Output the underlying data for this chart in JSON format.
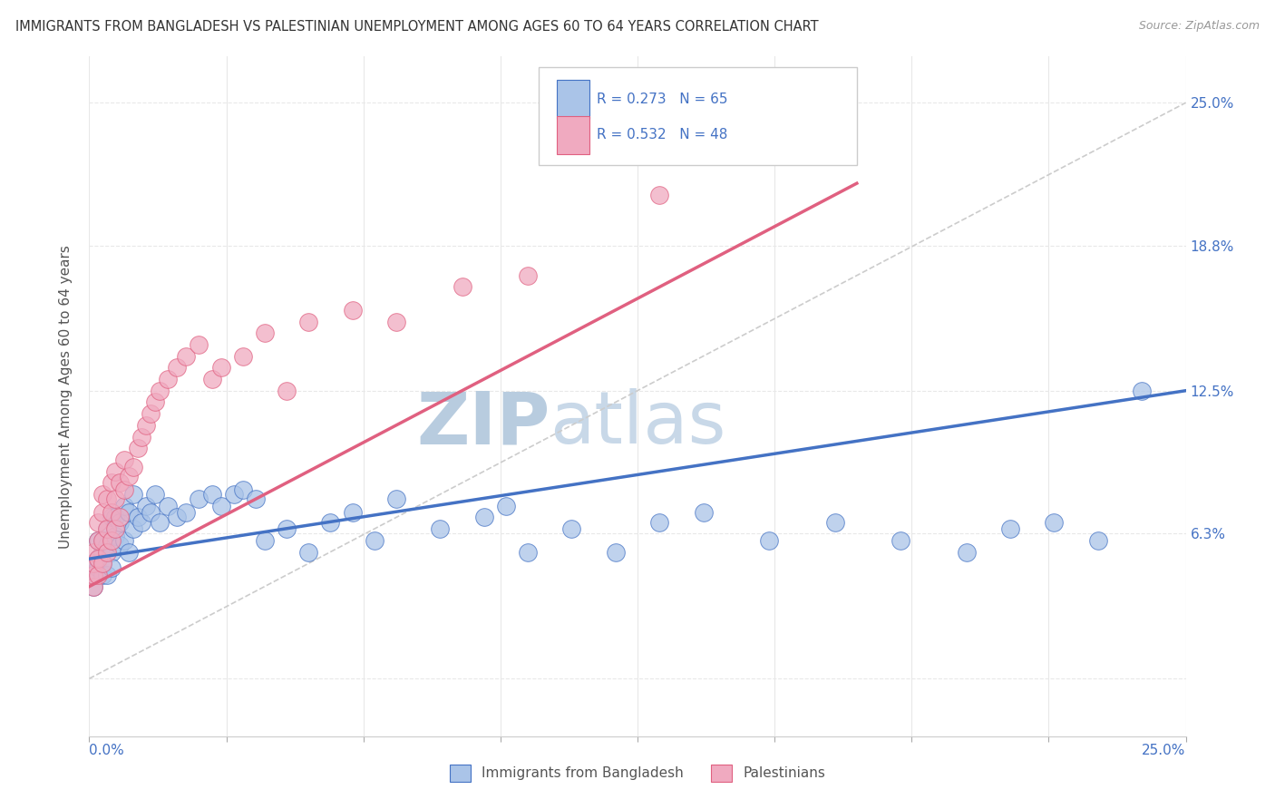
{
  "title": "IMMIGRANTS FROM BANGLADESH VS PALESTINIAN UNEMPLOYMENT AMONG AGES 60 TO 64 YEARS CORRELATION CHART",
  "source": "Source: ZipAtlas.com",
  "ylabel": "Unemployment Among Ages 60 to 64 years",
  "y_tick_vals": [
    0.0,
    0.063,
    0.125,
    0.188,
    0.25
  ],
  "y_tick_labels": [
    "",
    "6.3%",
    "12.5%",
    "18.8%",
    "25.0%"
  ],
  "x_min": 0.0,
  "x_max": 0.25,
  "y_min": -0.025,
  "y_max": 0.27,
  "series1_color": "#aac4e8",
  "series2_color": "#f0aac0",
  "trendline1_color": "#4472c4",
  "trendline2_color": "#e06080",
  "trendline_ref_color": "#cccccc",
  "watermark_color": "#dce8f5",
  "legend_text_color": "#4472c4",
  "title_color": "#333333",
  "grid_color": "#e8e8e8",
  "bangladesh_x": [
    0.001,
    0.001,
    0.001,
    0.002,
    0.002,
    0.002,
    0.003,
    0.003,
    0.003,
    0.003,
    0.004,
    0.004,
    0.004,
    0.005,
    0.005,
    0.005,
    0.005,
    0.006,
    0.006,
    0.007,
    0.007,
    0.008,
    0.008,
    0.009,
    0.009,
    0.01,
    0.01,
    0.011,
    0.012,
    0.013,
    0.014,
    0.015,
    0.016,
    0.018,
    0.02,
    0.022,
    0.025,
    0.028,
    0.03,
    0.033,
    0.035,
    0.038,
    0.04,
    0.045,
    0.05,
    0.055,
    0.06,
    0.065,
    0.07,
    0.08,
    0.09,
    0.095,
    0.1,
    0.11,
    0.12,
    0.13,
    0.14,
    0.155,
    0.17,
    0.185,
    0.2,
    0.21,
    0.22,
    0.23,
    0.24
  ],
  "bangladesh_y": [
    0.045,
    0.05,
    0.04,
    0.048,
    0.052,
    0.06,
    0.05,
    0.06,
    0.045,
    0.055,
    0.058,
    0.065,
    0.045,
    0.06,
    0.055,
    0.07,
    0.048,
    0.062,
    0.07,
    0.058,
    0.068,
    0.06,
    0.075,
    0.055,
    0.072,
    0.065,
    0.08,
    0.07,
    0.068,
    0.075,
    0.072,
    0.08,
    0.068,
    0.075,
    0.07,
    0.072,
    0.078,
    0.08,
    0.075,
    0.08,
    0.082,
    0.078,
    0.06,
    0.065,
    0.055,
    0.068,
    0.072,
    0.06,
    0.078,
    0.065,
    0.07,
    0.075,
    0.055,
    0.065,
    0.055,
    0.068,
    0.072,
    0.06,
    0.068,
    0.06,
    0.055,
    0.065,
    0.068,
    0.06,
    0.125
  ],
  "palestinian_x": [
    0.001,
    0.001,
    0.001,
    0.001,
    0.002,
    0.002,
    0.002,
    0.002,
    0.003,
    0.003,
    0.003,
    0.003,
    0.004,
    0.004,
    0.004,
    0.005,
    0.005,
    0.005,
    0.006,
    0.006,
    0.006,
    0.007,
    0.007,
    0.008,
    0.008,
    0.009,
    0.01,
    0.011,
    0.012,
    0.013,
    0.014,
    0.015,
    0.016,
    0.018,
    0.02,
    0.022,
    0.025,
    0.028,
    0.03,
    0.035,
    0.04,
    0.045,
    0.05,
    0.06,
    0.07,
    0.085,
    0.1,
    0.13
  ],
  "palestinian_y": [
    0.04,
    0.045,
    0.05,
    0.055,
    0.045,
    0.052,
    0.06,
    0.068,
    0.05,
    0.06,
    0.072,
    0.08,
    0.055,
    0.065,
    0.078,
    0.06,
    0.072,
    0.085,
    0.065,
    0.078,
    0.09,
    0.07,
    0.085,
    0.082,
    0.095,
    0.088,
    0.092,
    0.1,
    0.105,
    0.11,
    0.115,
    0.12,
    0.125,
    0.13,
    0.135,
    0.14,
    0.145,
    0.13,
    0.135,
    0.14,
    0.15,
    0.125,
    0.155,
    0.16,
    0.155,
    0.17,
    0.175,
    0.21
  ],
  "trendline1_x0": 0.0,
  "trendline1_y0": 0.052,
  "trendline1_x1": 0.25,
  "trendline1_y1": 0.125,
  "trendline2_x0": 0.0,
  "trendline2_y0": 0.04,
  "trendline2_x1": 0.175,
  "trendline2_y1": 0.215
}
